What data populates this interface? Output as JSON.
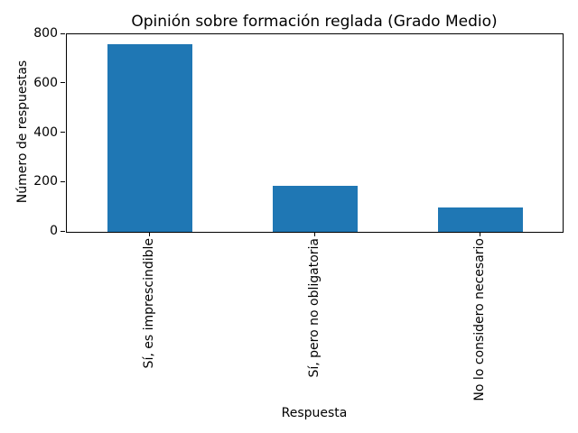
{
  "chart_data": {
    "type": "bar",
    "title": "Opinión sobre formación reglada (Grado Medio)",
    "xlabel": "Respuesta",
    "ylabel": "Número de respuestas",
    "categories": [
      "Sí, es imprescindible",
      "Sí, pero no obligatoria",
      "No lo considero necesario"
    ],
    "values": [
      760,
      185,
      100
    ],
    "ylim": [
      0,
      800
    ],
    "yticks": [
      0,
      200,
      400,
      600,
      800
    ],
    "bar_color": "#1f77b4",
    "axis_color": "#000000",
    "grid": false,
    "legend": "none",
    "xtick_rotation_deg": 90
  }
}
